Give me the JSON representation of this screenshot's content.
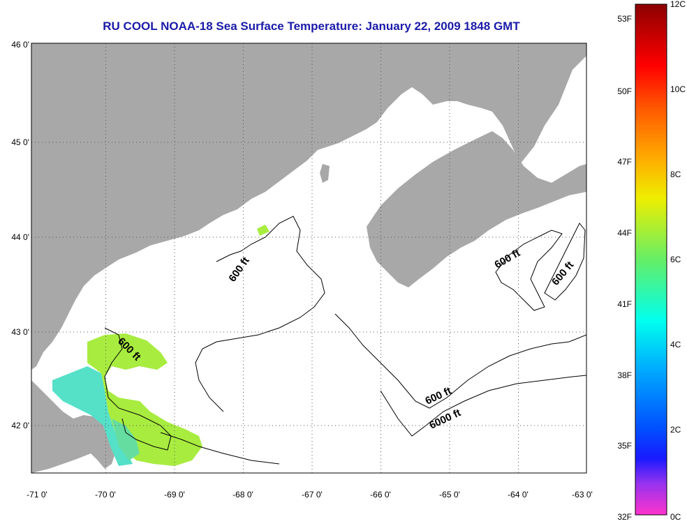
{
  "title": "RU COOL  NOAA-18  Sea Surface Temperature:  January 22, 2009 1848 GMT",
  "map": {
    "x_ticks": [
      "-71 0'",
      "-70 0'",
      "-69 0'",
      "-68 0'",
      "-67 0'",
      "-66 0'",
      "-65 0'",
      "-64 0'",
      "-63 0'"
    ],
    "y_ticks": [
      "46 0'",
      "45 0'",
      "44 0'",
      "43 0'",
      "42 0'"
    ],
    "lon_range": [
      -71,
      -63
    ],
    "lat_range": [
      41.5,
      46
    ],
    "land_color": "#a8a8a8",
    "water_color": "#ffffff",
    "contour_labels": [
      "600 ft",
      "600 ft",
      "600 ft",
      "600 ft",
      "600 ft",
      "6000 ft"
    ]
  },
  "colorbar": {
    "f_labels": [
      "53F",
      "50F",
      "47F",
      "44F",
      "41F",
      "38F",
      "35F",
      "32F"
    ],
    "c_labels": [
      "12C",
      "10C",
      "8C",
      "6C",
      "4C",
      "2C",
      "0C"
    ]
  }
}
